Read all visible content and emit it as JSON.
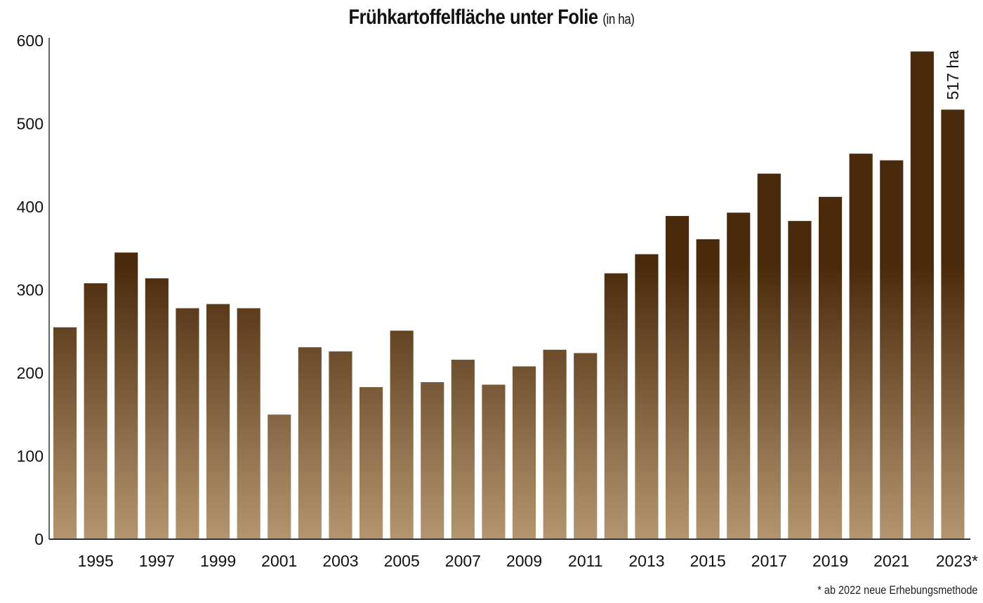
{
  "chart_data": {
    "type": "bar",
    "title": "Frühkartoffelfläche unter Folie",
    "title_unit": "(in ha)",
    "xlabel": "",
    "ylabel": "",
    "ylim": [
      0,
      600
    ],
    "yticks": [
      0,
      100,
      200,
      300,
      400,
      500,
      600
    ],
    "grid": false,
    "categories": [
      "1994",
      "1995",
      "1996",
      "1997",
      "1998",
      "1999",
      "2000",
      "2001",
      "2002",
      "2003",
      "2004",
      "2005",
      "2006",
      "2007",
      "2008",
      "2009",
      "2010",
      "2011",
      "2012",
      "2013",
      "2014",
      "2015",
      "2016",
      "2017",
      "2018",
      "2019",
      "2020",
      "2021",
      "2022",
      "2023"
    ],
    "xtick_labels": [
      "1995",
      "1997",
      "1999",
      "2001",
      "2003",
      "2005",
      "2007",
      "2009",
      "2011",
      "2013",
      "2015",
      "2017",
      "2019",
      "2021",
      "2023*"
    ],
    "values": [
      255,
      308,
      345,
      314,
      278,
      283,
      278,
      150,
      231,
      226,
      183,
      251,
      189,
      216,
      186,
      208,
      228,
      224,
      320,
      343,
      389,
      361,
      393,
      440,
      383,
      412,
      464,
      456,
      587,
      517
    ],
    "data_label": "517 ha",
    "footnote": "* ab 2022 neue Erhebungsmethode",
    "colors": {
      "bar_top": "#4a2a0c",
      "bar_bottom": "#b3966f",
      "axis": "#333333"
    }
  }
}
